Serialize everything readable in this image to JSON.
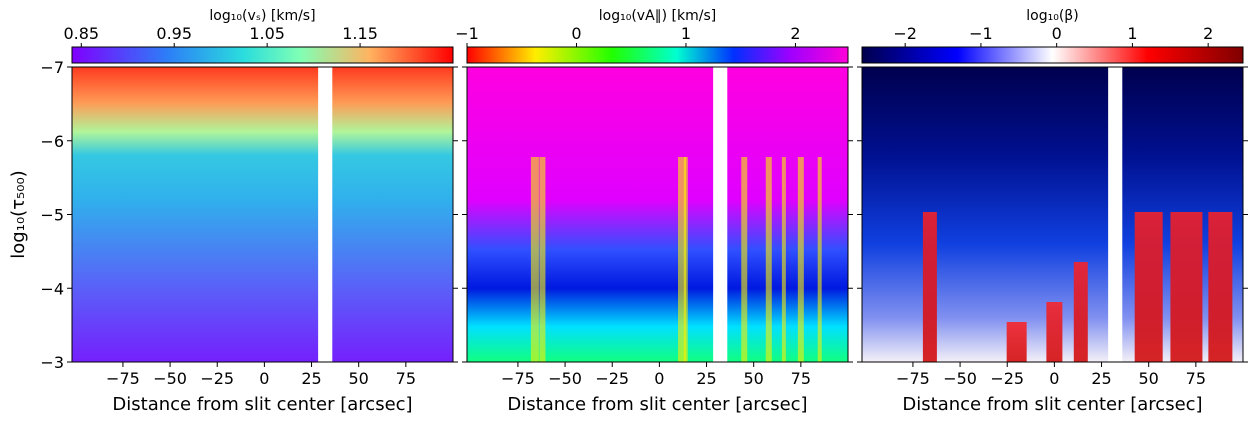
{
  "chart_data": [
    {
      "type": "heatmap",
      "colorbar_label": "log₁₀(vₛ) [km/s]",
      "colorbar_lim": [
        0.84,
        1.25
      ],
      "colorbar_ticks": [
        0.85,
        0.95,
        1.05,
        1.15
      ],
      "xlabel": "Distance from slit center [arcsec]",
      "xlim": [
        -102,
        100
      ],
      "xticks": [
        {
          "value": -75,
          "label": "−75"
        },
        {
          "value": -50,
          "label": "−50"
        },
        {
          "value": -25,
          "label": "−25"
        },
        0,
        25,
        50,
        75
      ],
      "ylabel": "log₁₀(τ₅₀₀)",
      "ylim": [
        -7,
        -3
      ],
      "yticks": [
        {
          "value": -7,
          "label": "−7"
        },
        {
          "value": -6,
          "label": "−6"
        },
        {
          "value": -5,
          "label": "−5"
        },
        {
          "value": -4,
          "label": "−4"
        },
        {
          "value": -3,
          "label": "−3"
        }
      ]
    },
    {
      "type": "heatmap",
      "colorbar_label": "log₁₀(vA∥) [km/s]",
      "colorbar_lim": [
        -1,
        2.48
      ],
      "colorbar_ticks": [
        {
          "value": -1,
          "label": "−1"
        },
        0,
        1,
        2
      ],
      "xlabel": "Distance from slit center [arcsec]",
      "xlim": [
        -102,
        100
      ],
      "xticks": [
        {
          "value": -75,
          "label": "−75"
        },
        {
          "value": -50,
          "label": "−50"
        },
        {
          "value": -25,
          "label": "−25"
        },
        0,
        25,
        50,
        75
      ]
    },
    {
      "type": "heatmap",
      "colorbar_label": "log₁₀(β)",
      "colorbar_lim": [
        -2.57,
        2.46
      ],
      "colorbar_ticks": [
        {
          "value": -2,
          "label": "−2"
        },
        {
          "value": -1,
          "label": "−1"
        },
        0,
        1,
        2
      ],
      "xlabel": "Distance from slit center [arcsec]",
      "xlim": [
        -102,
        100
      ],
      "xticks": [
        {
          "value": -75,
          "label": "−75"
        },
        {
          "value": -50,
          "label": "−50"
        },
        {
          "value": -25,
          "label": "−25"
        },
        0,
        25,
        50,
        75
      ]
    }
  ]
}
